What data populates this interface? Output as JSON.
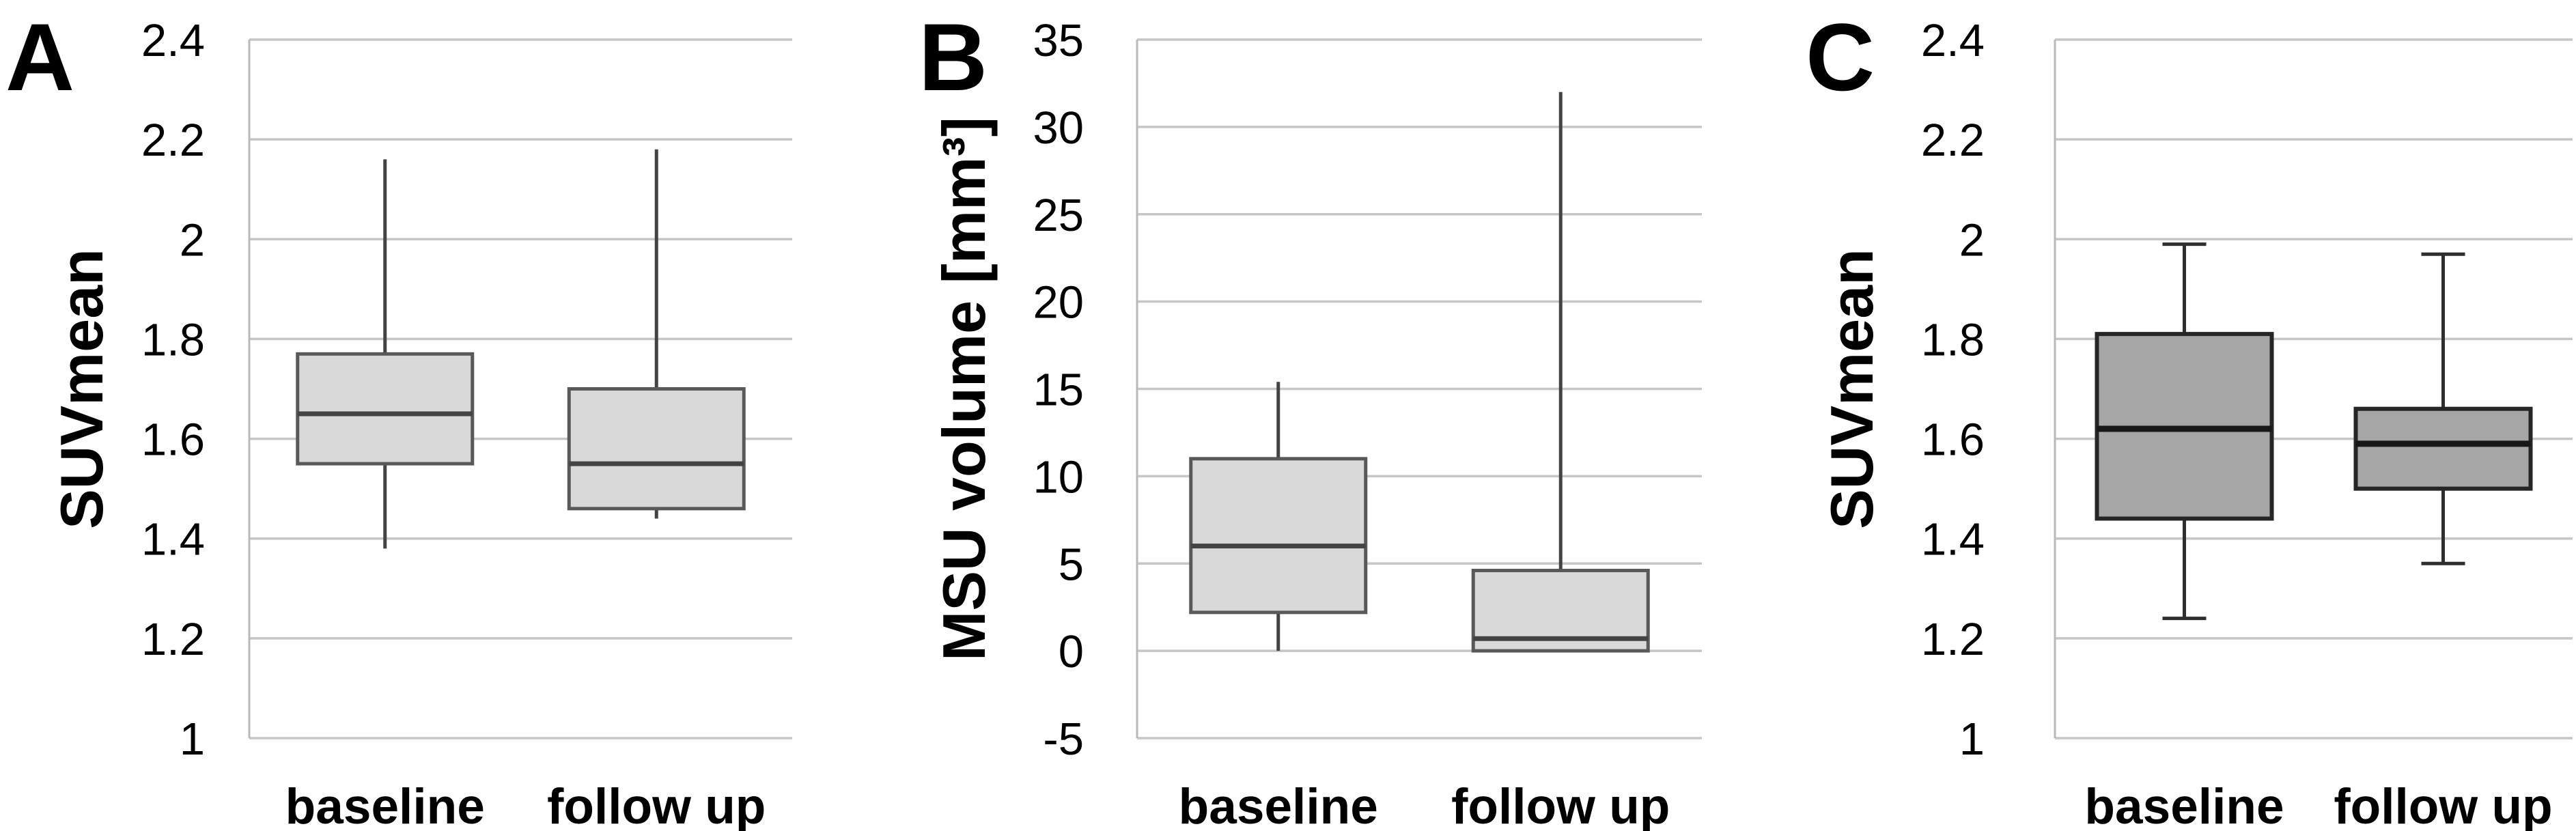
{
  "figure": {
    "background": "#ffffff",
    "gridline_color": "#c6c6c6",
    "axis_line_color": "#b9b9b9",
    "text_color": "#000000"
  },
  "chart_data": [
    {
      "type": "boxplot",
      "panel_label": "A",
      "ylabel": "SUVmean",
      "ylim": [
        1,
        2.4
      ],
      "yticks": [
        1,
        1.2,
        1.4,
        1.6,
        1.8,
        2,
        2.2,
        2.4
      ],
      "ytick_labels": [
        "1",
        "1.2",
        "1.4",
        "1.6",
        "1.8",
        "2",
        "2.2",
        "2.4"
      ],
      "categories": [
        "baseline",
        "follow up"
      ],
      "grid": true,
      "legend": "none",
      "series": [
        {
          "name": "baseline",
          "min": 1.38,
          "q1": 1.55,
          "median": 1.65,
          "q3": 1.77,
          "max": 2.16
        },
        {
          "name": "follow up",
          "min": 1.44,
          "q1": 1.46,
          "median": 1.55,
          "q3": 1.7,
          "max": 2.18
        }
      ],
      "style": {
        "box_fill": "#d9d9d9",
        "box_stroke": "#595959",
        "median_color": "#434343",
        "whisker_color": "#434343",
        "whisker_caps": false
      }
    },
    {
      "type": "boxplot",
      "panel_label": "B",
      "ylabel": "MSU volume [mm³]",
      "ylim": [
        -5,
        35
      ],
      "yticks": [
        -5,
        0,
        5,
        10,
        15,
        20,
        25,
        30,
        35
      ],
      "ytick_labels": [
        "-5",
        "0",
        "5",
        "10",
        "15",
        "20",
        "25",
        "30",
        "35"
      ],
      "categories": [
        "baseline",
        "follow up"
      ],
      "grid": true,
      "legend": "none",
      "series": [
        {
          "name": "baseline",
          "min": 0,
          "q1": 2.2,
          "median": 6,
          "q3": 11,
          "max": 15.4
        },
        {
          "name": "follow up",
          "min": 0,
          "q1": 0,
          "median": 0.7,
          "q3": 4.6,
          "max": 32
        }
      ],
      "style": {
        "box_fill": "#d9d9d9",
        "box_stroke": "#595959",
        "median_color": "#434343",
        "whisker_color": "#434343",
        "whisker_caps": false
      }
    },
    {
      "type": "boxplot",
      "panel_label": "C",
      "ylabel": "SUVmean",
      "ylim": [
        1,
        2.4
      ],
      "yticks": [
        1,
        1.2,
        1.4,
        1.6,
        1.8,
        2,
        2.2,
        2.4
      ],
      "ytick_labels": [
        "1",
        "1.2",
        "1.4",
        "1.6",
        "1.8",
        "2",
        "2.2",
        "2.4"
      ],
      "categories": [
        "baseline",
        "follow up"
      ],
      "grid": true,
      "legend": "none",
      "series": [
        {
          "name": "baseline",
          "min": 1.24,
          "q1": 1.44,
          "median": 1.62,
          "q3": 1.81,
          "max": 1.99
        },
        {
          "name": "follow up",
          "min": 1.35,
          "q1": 1.5,
          "median": 1.59,
          "q3": 1.66,
          "max": 1.97
        }
      ],
      "style": {
        "box_fill": "#a6a6a6",
        "box_stroke": "#262626",
        "median_color": "#171717",
        "whisker_color": "#2e2e2e",
        "whisker_caps": true
      }
    }
  ]
}
